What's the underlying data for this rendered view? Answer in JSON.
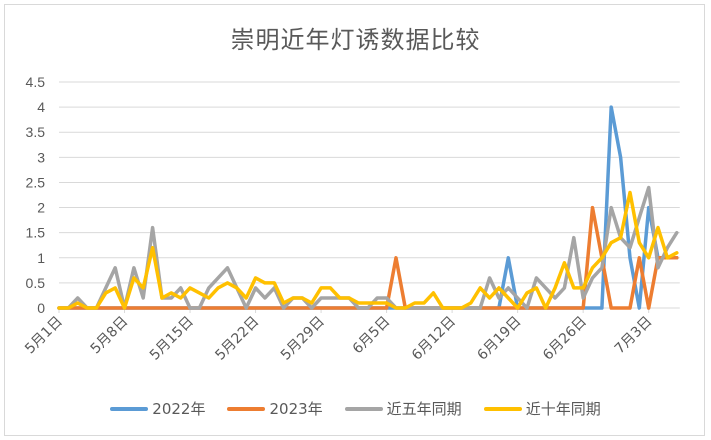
{
  "chart_data": {
    "type": "line",
    "title": "崇明近年灯诱数据比较",
    "xlabel": "",
    "ylabel": "",
    "ylim": [
      0,
      4.5
    ],
    "y_ticks": [
      "0",
      "0.5",
      "1",
      "1.5",
      "2",
      "2.5",
      "3",
      "3.5",
      "4",
      "4.5"
    ],
    "x_tick_labels": [
      "5月1日",
      "5月8日",
      "5月15日",
      "5月22日",
      "5月29日",
      "6月5日",
      "6月12日",
      "6月19日",
      "6月26日",
      "7月3日"
    ],
    "x_tick_indices": [
      0,
      7,
      14,
      21,
      28,
      35,
      42,
      49,
      56,
      63
    ],
    "x_start": "5月1日",
    "x_end": "7月6日",
    "grid": true,
    "legend_position": "bottom",
    "series": [
      {
        "name": "2022年",
        "color": "#5B9BD5",
        "values": [
          0,
          0,
          0,
          0,
          0,
          0,
          0,
          0,
          0,
          0,
          0,
          0,
          0,
          0,
          0,
          0,
          0,
          0,
          0,
          0,
          0,
          0,
          0,
          0,
          0,
          0,
          0,
          0,
          0,
          0,
          0,
          0,
          0,
          0,
          0,
          0,
          0,
          0,
          0,
          0,
          0,
          0,
          0,
          0,
          0,
          0,
          0,
          0,
          1,
          0,
          0,
          0,
          0,
          0,
          0,
          0,
          0,
          0,
          0,
          4,
          3,
          1,
          0,
          2,
          1,
          1,
          1
        ]
      },
      {
        "name": "2023年",
        "color": "#ED7D31",
        "values": [
          0,
          0,
          0,
          0,
          0,
          0,
          0,
          0,
          0,
          0,
          0,
          0,
          0,
          0,
          0,
          0,
          0,
          0,
          0,
          0,
          0,
          0,
          0,
          0,
          0,
          0,
          0,
          0,
          0,
          0,
          0,
          0,
          0,
          0,
          0,
          0,
          1,
          0,
          0,
          0,
          0,
          0,
          0,
          0,
          0,
          0,
          0,
          0,
          0,
          0,
          0,
          0,
          0,
          0,
          0,
          0,
          0,
          2,
          1,
          0,
          0,
          0,
          1,
          0,
          1,
          1,
          1
        ]
      },
      {
        "name": "近五年同期",
        "color": "#A5A5A5",
        "values": [
          0,
          0,
          0.2,
          0,
          0,
          0.4,
          0.8,
          0,
          0.8,
          0.2,
          1.6,
          0.2,
          0.2,
          0.4,
          0,
          0,
          0.4,
          0.6,
          0.8,
          0.4,
          0,
          0.4,
          0.2,
          0.4,
          0,
          0.2,
          0.2,
          0,
          0.2,
          0.2,
          0.2,
          0.2,
          0,
          0,
          0.2,
          0.2,
          0,
          0,
          0,
          0,
          0,
          0,
          0,
          0,
          0,
          0,
          0.6,
          0.2,
          0.4,
          0.2,
          0,
          0.6,
          0.4,
          0.2,
          0.4,
          1.4,
          0.2,
          0.6,
          0.8,
          2.0,
          1.4,
          1.2,
          1.8,
          2.4,
          0.8,
          1.2,
          1.5
        ]
      },
      {
        "name": "近十年同期",
        "color": "#FFC000",
        "values": [
          0,
          0,
          0.1,
          0,
          0,
          0.3,
          0.4,
          0,
          0.6,
          0.4,
          1.2,
          0.2,
          0.3,
          0.2,
          0.4,
          0.3,
          0.2,
          0.4,
          0.5,
          0.4,
          0.2,
          0.6,
          0.5,
          0.5,
          0.1,
          0.2,
          0.2,
          0.1,
          0.4,
          0.4,
          0.2,
          0.2,
          0.1,
          0.1,
          0.1,
          0.1,
          0,
          0,
          0.1,
          0.1,
          0.3,
          0,
          0,
          0,
          0.1,
          0.4,
          0.2,
          0.4,
          0.2,
          0,
          0.3,
          0.4,
          0,
          0.4,
          0.9,
          0.4,
          0.4,
          0.8,
          1.0,
          1.3,
          1.4,
          2.3,
          1.3,
          1.0,
          1.6,
          1.0,
          1.1
        ]
      }
    ]
  },
  "title": "崇明近年灯诱数据比较",
  "legend": [
    {
      "label": "2022年",
      "color": "#5B9BD5"
    },
    {
      "label": "2023年",
      "color": "#ED7D31"
    },
    {
      "label": "近五年同期",
      "color": "#A5A5A5"
    },
    {
      "label": "近十年同期",
      "color": "#FFC000"
    }
  ],
  "colors": {
    "grid": "#d9d9d9",
    "axis_text": "#595959",
    "frame": "#d9d9d9"
  }
}
